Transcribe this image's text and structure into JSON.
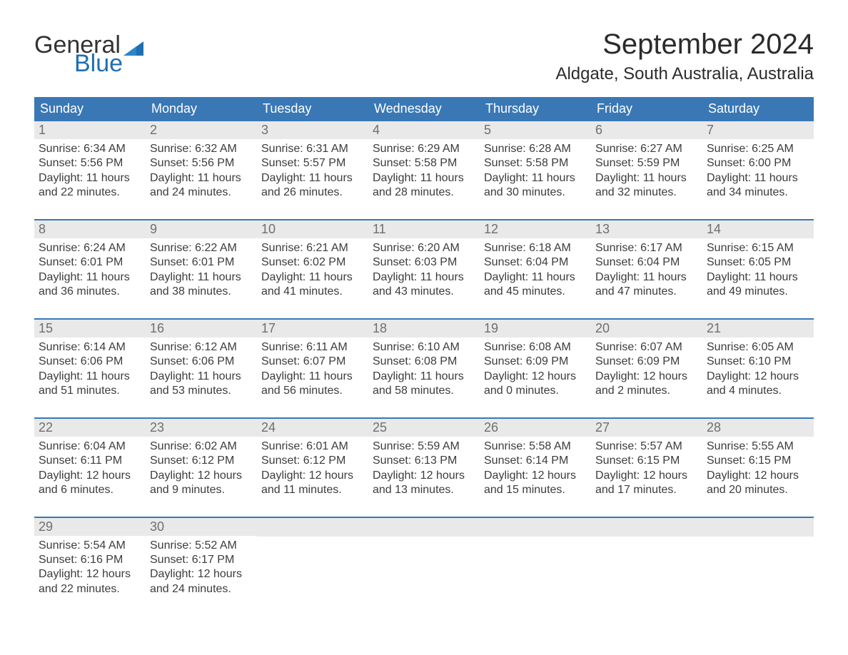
{
  "brand": {
    "line1": "General",
    "line2": "Blue",
    "text_color": "#333333",
    "blue_color": "#1f6fb2"
  },
  "title": "September 2024",
  "location": "Aldgate, South Australia, Australia",
  "colors": {
    "header_bg": "#3a78b5",
    "header_text": "#ffffff",
    "daynum_bg": "#e9e9e9",
    "daynum_color": "#6f6f6f",
    "body_text": "#3c3c3c",
    "week_divider": "#3a78b5",
    "page_bg": "#ffffff"
  },
  "fonts": {
    "title_size_pt": 30,
    "location_size_pt": 18,
    "weekday_size_pt": 14,
    "daynum_size_pt": 14,
    "body_size_pt": 12,
    "logo_size_pt": 26
  },
  "weekdays": [
    "Sunday",
    "Monday",
    "Tuesday",
    "Wednesday",
    "Thursday",
    "Friday",
    "Saturday"
  ],
  "weeks": [
    [
      {
        "n": "1",
        "sunrise": "Sunrise: 6:34 AM",
        "sunset": "Sunset: 5:56 PM",
        "dl1": "Daylight: 11 hours",
        "dl2": "and 22 minutes."
      },
      {
        "n": "2",
        "sunrise": "Sunrise: 6:32 AM",
        "sunset": "Sunset: 5:56 PM",
        "dl1": "Daylight: 11 hours",
        "dl2": "and 24 minutes."
      },
      {
        "n": "3",
        "sunrise": "Sunrise: 6:31 AM",
        "sunset": "Sunset: 5:57 PM",
        "dl1": "Daylight: 11 hours",
        "dl2": "and 26 minutes."
      },
      {
        "n": "4",
        "sunrise": "Sunrise: 6:29 AM",
        "sunset": "Sunset: 5:58 PM",
        "dl1": "Daylight: 11 hours",
        "dl2": "and 28 minutes."
      },
      {
        "n": "5",
        "sunrise": "Sunrise: 6:28 AM",
        "sunset": "Sunset: 5:58 PM",
        "dl1": "Daylight: 11 hours",
        "dl2": "and 30 minutes."
      },
      {
        "n": "6",
        "sunrise": "Sunrise: 6:27 AM",
        "sunset": "Sunset: 5:59 PM",
        "dl1": "Daylight: 11 hours",
        "dl2": "and 32 minutes."
      },
      {
        "n": "7",
        "sunrise": "Sunrise: 6:25 AM",
        "sunset": "Sunset: 6:00 PM",
        "dl1": "Daylight: 11 hours",
        "dl2": "and 34 minutes."
      }
    ],
    [
      {
        "n": "8",
        "sunrise": "Sunrise: 6:24 AM",
        "sunset": "Sunset: 6:01 PM",
        "dl1": "Daylight: 11 hours",
        "dl2": "and 36 minutes."
      },
      {
        "n": "9",
        "sunrise": "Sunrise: 6:22 AM",
        "sunset": "Sunset: 6:01 PM",
        "dl1": "Daylight: 11 hours",
        "dl2": "and 38 minutes."
      },
      {
        "n": "10",
        "sunrise": "Sunrise: 6:21 AM",
        "sunset": "Sunset: 6:02 PM",
        "dl1": "Daylight: 11 hours",
        "dl2": "and 41 minutes."
      },
      {
        "n": "11",
        "sunrise": "Sunrise: 6:20 AM",
        "sunset": "Sunset: 6:03 PM",
        "dl1": "Daylight: 11 hours",
        "dl2": "and 43 minutes."
      },
      {
        "n": "12",
        "sunrise": "Sunrise: 6:18 AM",
        "sunset": "Sunset: 6:04 PM",
        "dl1": "Daylight: 11 hours",
        "dl2": "and 45 minutes."
      },
      {
        "n": "13",
        "sunrise": "Sunrise: 6:17 AM",
        "sunset": "Sunset: 6:04 PM",
        "dl1": "Daylight: 11 hours",
        "dl2": "and 47 minutes."
      },
      {
        "n": "14",
        "sunrise": "Sunrise: 6:15 AM",
        "sunset": "Sunset: 6:05 PM",
        "dl1": "Daylight: 11 hours",
        "dl2": "and 49 minutes."
      }
    ],
    [
      {
        "n": "15",
        "sunrise": "Sunrise: 6:14 AM",
        "sunset": "Sunset: 6:06 PM",
        "dl1": "Daylight: 11 hours",
        "dl2": "and 51 minutes."
      },
      {
        "n": "16",
        "sunrise": "Sunrise: 6:12 AM",
        "sunset": "Sunset: 6:06 PM",
        "dl1": "Daylight: 11 hours",
        "dl2": "and 53 minutes."
      },
      {
        "n": "17",
        "sunrise": "Sunrise: 6:11 AM",
        "sunset": "Sunset: 6:07 PM",
        "dl1": "Daylight: 11 hours",
        "dl2": "and 56 minutes."
      },
      {
        "n": "18",
        "sunrise": "Sunrise: 6:10 AM",
        "sunset": "Sunset: 6:08 PM",
        "dl1": "Daylight: 11 hours",
        "dl2": "and 58 minutes."
      },
      {
        "n": "19",
        "sunrise": "Sunrise: 6:08 AM",
        "sunset": "Sunset: 6:09 PM",
        "dl1": "Daylight: 12 hours",
        "dl2": "and 0 minutes."
      },
      {
        "n": "20",
        "sunrise": "Sunrise: 6:07 AM",
        "sunset": "Sunset: 6:09 PM",
        "dl1": "Daylight: 12 hours",
        "dl2": "and 2 minutes."
      },
      {
        "n": "21",
        "sunrise": "Sunrise: 6:05 AM",
        "sunset": "Sunset: 6:10 PM",
        "dl1": "Daylight: 12 hours",
        "dl2": "and 4 minutes."
      }
    ],
    [
      {
        "n": "22",
        "sunrise": "Sunrise: 6:04 AM",
        "sunset": "Sunset: 6:11 PM",
        "dl1": "Daylight: 12 hours",
        "dl2": "and 6 minutes."
      },
      {
        "n": "23",
        "sunrise": "Sunrise: 6:02 AM",
        "sunset": "Sunset: 6:12 PM",
        "dl1": "Daylight: 12 hours",
        "dl2": "and 9 minutes."
      },
      {
        "n": "24",
        "sunrise": "Sunrise: 6:01 AM",
        "sunset": "Sunset: 6:12 PM",
        "dl1": "Daylight: 12 hours",
        "dl2": "and 11 minutes."
      },
      {
        "n": "25",
        "sunrise": "Sunrise: 5:59 AM",
        "sunset": "Sunset: 6:13 PM",
        "dl1": "Daylight: 12 hours",
        "dl2": "and 13 minutes."
      },
      {
        "n": "26",
        "sunrise": "Sunrise: 5:58 AM",
        "sunset": "Sunset: 6:14 PM",
        "dl1": "Daylight: 12 hours",
        "dl2": "and 15 minutes."
      },
      {
        "n": "27",
        "sunrise": "Sunrise: 5:57 AM",
        "sunset": "Sunset: 6:15 PM",
        "dl1": "Daylight: 12 hours",
        "dl2": "and 17 minutes."
      },
      {
        "n": "28",
        "sunrise": "Sunrise: 5:55 AM",
        "sunset": "Sunset: 6:15 PM",
        "dl1": "Daylight: 12 hours",
        "dl2": "and 20 minutes."
      }
    ],
    [
      {
        "n": "29",
        "sunrise": "Sunrise: 5:54 AM",
        "sunset": "Sunset: 6:16 PM",
        "dl1": "Daylight: 12 hours",
        "dl2": "and 22 minutes."
      },
      {
        "n": "30",
        "sunrise": "Sunrise: 5:52 AM",
        "sunset": "Sunset: 6:17 PM",
        "dl1": "Daylight: 12 hours",
        "dl2": "and 24 minutes."
      },
      {
        "empty": true
      },
      {
        "empty": true
      },
      {
        "empty": true
      },
      {
        "empty": true
      },
      {
        "empty": true
      }
    ]
  ]
}
